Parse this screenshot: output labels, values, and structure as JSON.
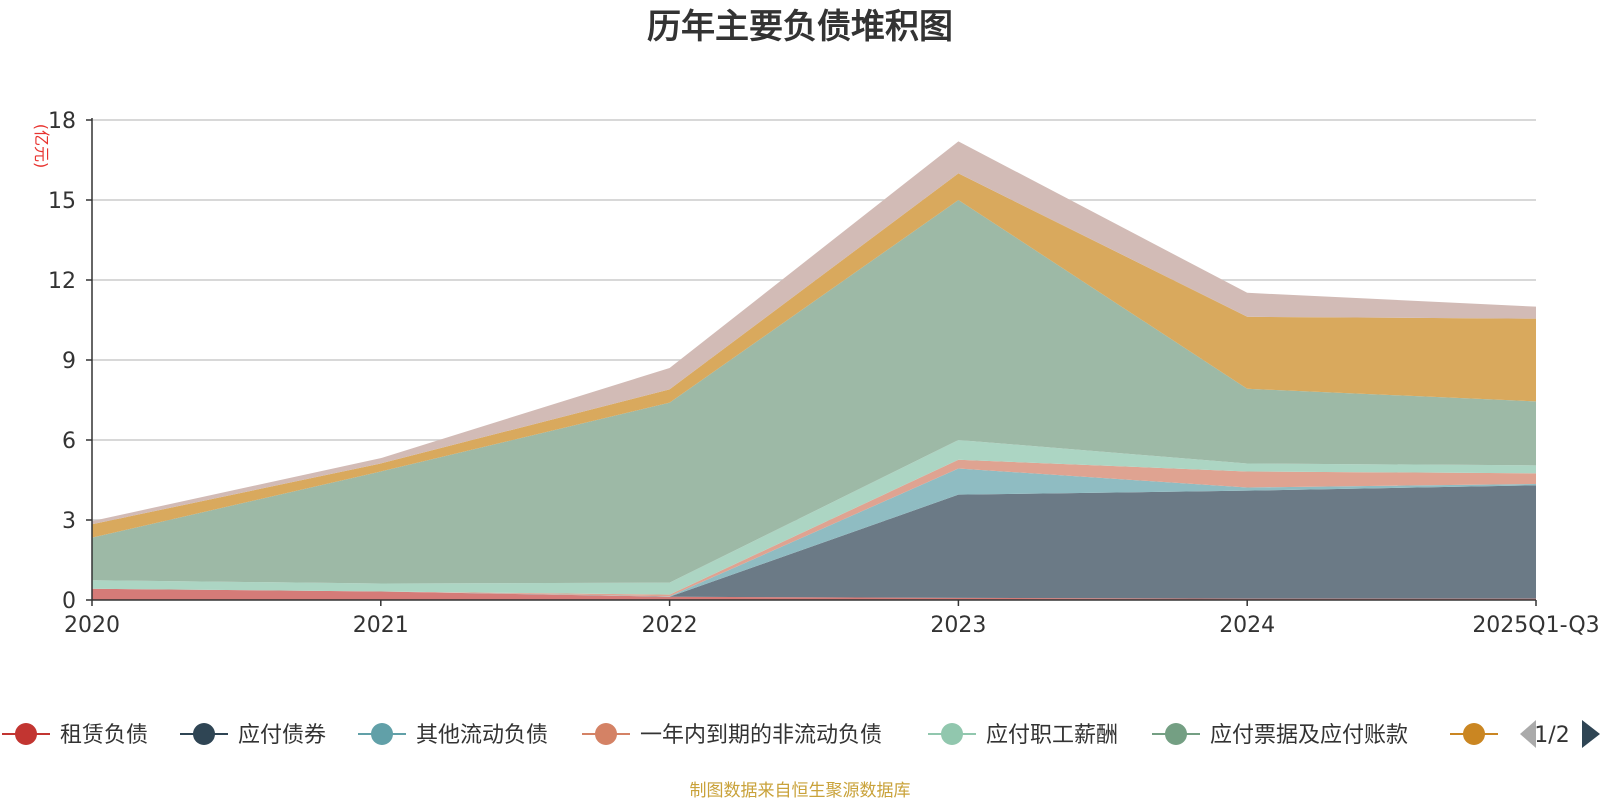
{
  "chart_data": {
    "type": "area",
    "stacked": true,
    "title": "历年主要负债堆积图",
    "ylabel": "(亿元)",
    "ylim": [
      0,
      18
    ],
    "yticks": [
      0,
      3,
      6,
      9,
      12,
      15,
      18
    ],
    "grid": true,
    "categories": [
      "2020",
      "2021",
      "2022",
      "2023",
      "2024",
      "2025Q1-Q3"
    ],
    "series": [
      {
        "name": "租赁负债",
        "color": "#c23531",
        "fill": "#d57b78",
        "values": [
          0.42,
          0.32,
          0.12,
          0.08,
          0.05,
          0.05
        ]
      },
      {
        "name": "应付债券",
        "color": "#2f4554",
        "fill": "#6b7a86",
        "values": [
          0.0,
          0.0,
          0.0,
          3.87,
          4.05,
          4.25
        ]
      },
      {
        "name": "其他流动负债",
        "color": "#61a0a8",
        "fill": "#8fbcc2",
        "values": [
          0.0,
          0.0,
          0.02,
          0.98,
          0.12,
          0.05
        ]
      },
      {
        "name": "一年内到期的非流动负债",
        "color": "#d48265",
        "fill": "#dfa391",
        "values": [
          0.0,
          0.0,
          0.06,
          0.33,
          0.6,
          0.4
        ]
      },
      {
        "name": "应付职工薪酬",
        "color": "#91c7ae",
        "fill": "#acd5c3",
        "values": [
          0.32,
          0.3,
          0.45,
          0.74,
          0.3,
          0.3
        ]
      },
      {
        "name": "应付票据及应付账款",
        "color": "#749f83",
        "fill": "#9db9a6",
        "values": [
          1.6,
          4.2,
          6.75,
          9.0,
          2.8,
          2.4
        ]
      },
      {
        "name": "",
        "color": "#ca8622",
        "fill": "#d9a95d",
        "values": [
          0.5,
          0.3,
          0.5,
          1.0,
          2.7,
          3.1
        ]
      },
      {
        "name": "",
        "color": "#bda29a",
        "fill": "#d2bbb6",
        "values": [
          0.12,
          0.2,
          0.8,
          1.2,
          0.9,
          0.45
        ]
      }
    ]
  },
  "legend": {
    "visible_count": 7,
    "page_indicator": "1/2"
  },
  "footer": {
    "source_text": "制图数据来自恒生聚源数据库"
  }
}
